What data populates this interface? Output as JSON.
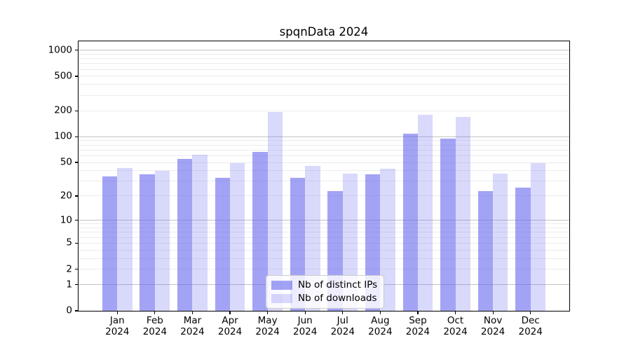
{
  "chart_data": {
    "type": "bar",
    "title": "spqnData 2024",
    "year": "2024",
    "categories": [
      "Jan",
      "Feb",
      "Mar",
      "Apr",
      "May",
      "Jun",
      "Jul",
      "Aug",
      "Sep",
      "Oct",
      "Nov",
      "Dec"
    ],
    "series": [
      {
        "name": "Nb of distinct IPs",
        "color": "rgba(102,102,238,0.6)",
        "values": [
          34,
          36,
          55,
          33,
          66,
          33,
          23,
          36,
          108,
          95,
          23,
          25
        ]
      },
      {
        "name": "Nb of downloads",
        "color": "rgba(102,102,238,0.25)",
        "values": [
          43,
          40,
          62,
          49,
          192,
          46,
          37,
          42,
          178,
          170,
          37,
          49
        ]
      }
    ],
    "yscale": "log1p",
    "yticks": [
      0,
      1,
      2,
      5,
      10,
      20,
      50,
      100,
      200,
      500,
      1000
    ],
    "ymax": 1265,
    "xlabel": "",
    "ylabel": "",
    "grid": "horizontal, major decades dark + log minors faint",
    "legend_position": "lower center"
  },
  "colors": {
    "background": "#ffffff",
    "spine": "#000000",
    "grid_major": "#c3c3c3",
    "grid_minor": "#ececec",
    "legend_border": "#cccccc",
    "text": "#000000"
  }
}
